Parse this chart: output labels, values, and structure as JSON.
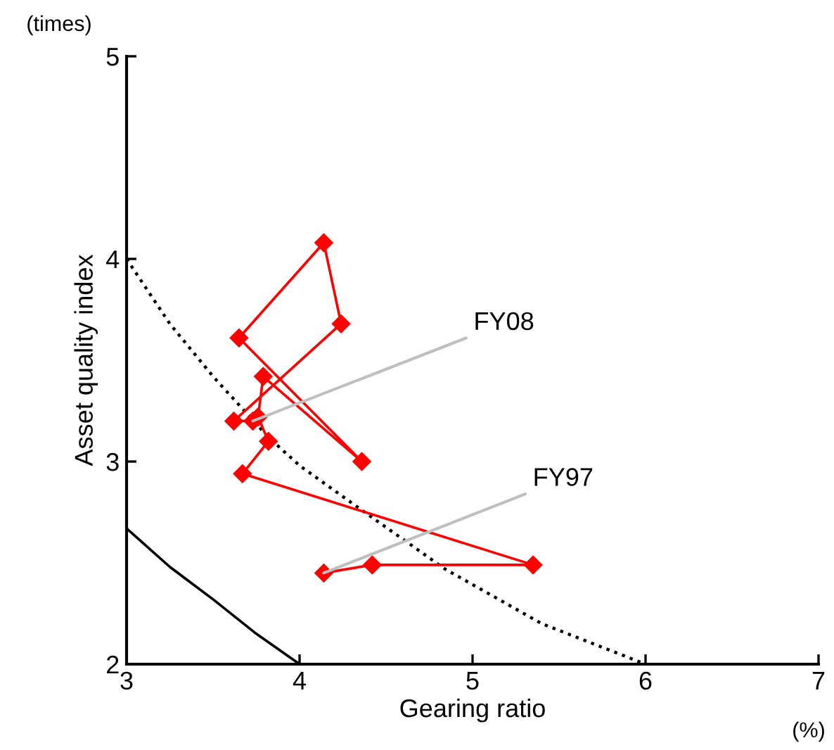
{
  "chart_data": {
    "type": "line",
    "xlabel": "Gearing ratio",
    "ylabel": "Asset quality index",
    "xlim": [
      3,
      7
    ],
    "ylim": [
      2,
      5
    ],
    "xticks": [
      3,
      4,
      5,
      6,
      7
    ],
    "yticks": [
      2,
      3,
      4,
      5
    ],
    "grid": false,
    "legend": false,
    "series": [
      {
        "color": "#000000",
        "line_style": "dotted",
        "marker": "none",
        "x": [
          3,
          3.25,
          3.5,
          3.82,
          4.0,
          4.36,
          4.84,
          5.4,
          6
        ],
        "values": [
          4.0,
          3.68,
          3.42,
          3.12,
          2.98,
          2.76,
          2.47,
          2.2,
          2.0
        ]
      },
      {
        "color": "#000000",
        "line_style": "solid",
        "marker": "none",
        "x": [
          3,
          3.25,
          3.5,
          3.75,
          4
        ],
        "values": [
          2.67,
          2.48,
          2.32,
          2.15,
          2.0
        ]
      },
      {
        "color": "#ff0000",
        "line_style": "solid",
        "marker": "diamond",
        "x": [
          4.14,
          4.42,
          5.35,
          3.67,
          3.82,
          3.76,
          3.79,
          4.36,
          3.65,
          4.14,
          4.24,
          3.62,
          3.73
        ],
        "values": [
          2.45,
          2.49,
          2.49,
          2.94,
          3.1,
          3.22,
          3.42,
          3.0,
          3.61,
          4.08,
          3.68,
          3.2,
          3.2
        ]
      }
    ],
    "annotations": [
      {
        "text": "FY08",
        "x": 3.73,
        "y": 3.2
      },
      {
        "text": "FY97",
        "x": 4.14,
        "y": 2.45
      },
      "(times)",
      "(%)"
    ]
  }
}
